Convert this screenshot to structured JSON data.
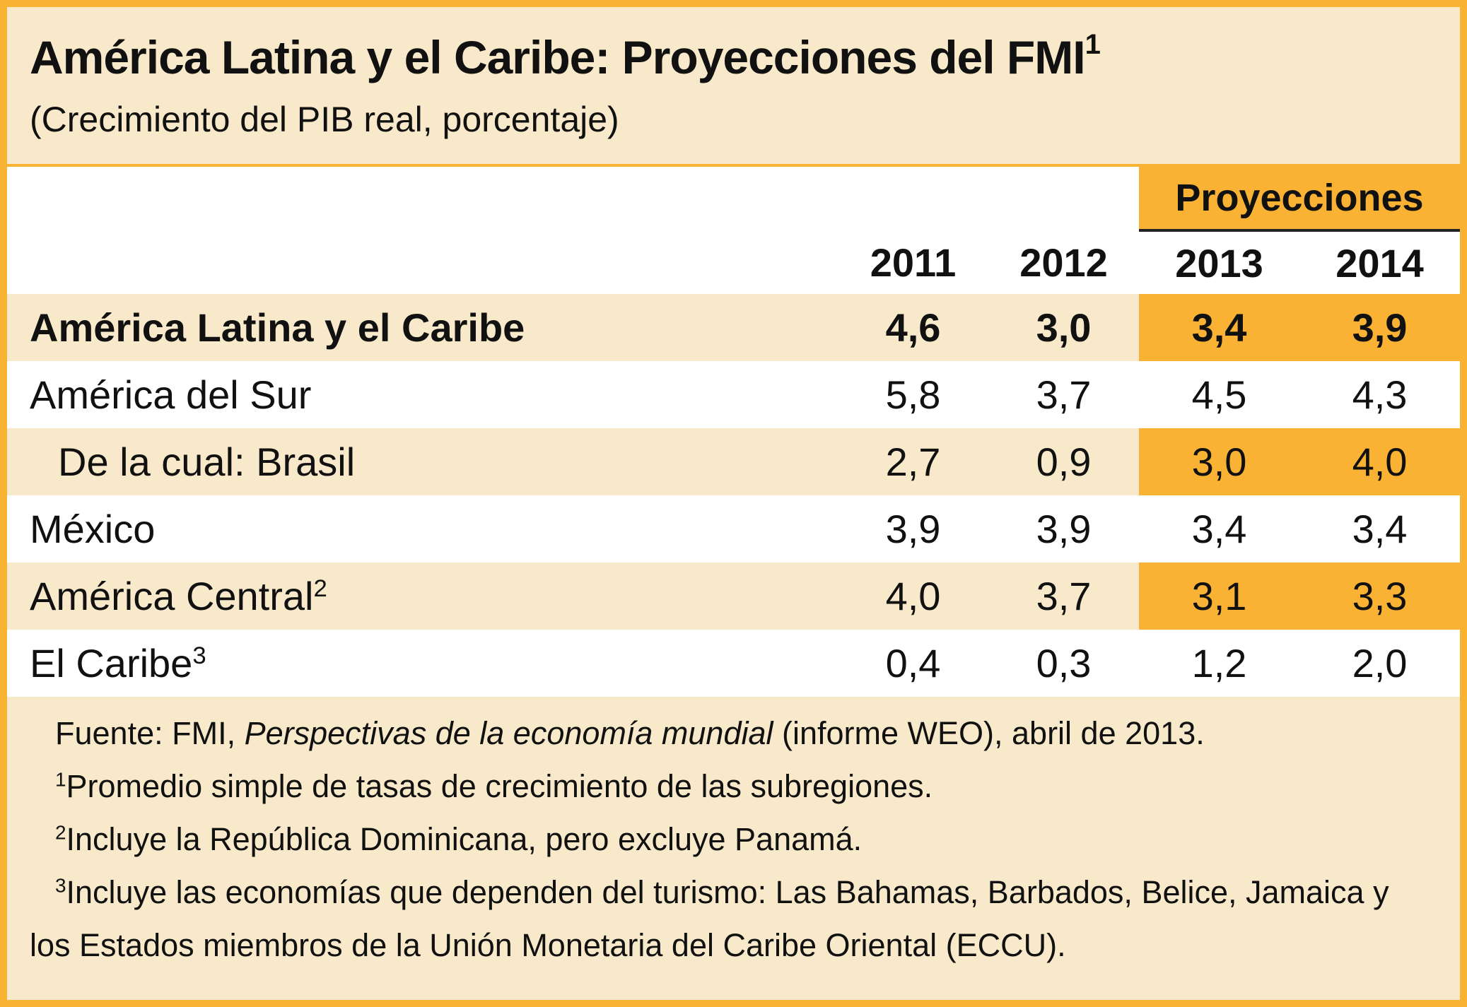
{
  "header": {
    "title": "América Latina y el Caribe: Proyecciones del FMI",
    "title_note": "1",
    "subtitle": "(Crecimiento del PIB real, porcentaje)"
  },
  "table": {
    "group_header": "Proyecciones",
    "columns": [
      "2011",
      "2012",
      "2013",
      "2014"
    ],
    "rows": [
      {
        "label": "América Latina y el Caribe",
        "values": [
          "4,6",
          "3,0",
          "3,4",
          "3,9"
        ]
      },
      {
        "label": "América del Sur",
        "values": [
          "5,8",
          "3,7",
          "4,5",
          "4,3"
        ]
      },
      {
        "label": "De la cual: Brasil",
        "values": [
          "2,7",
          "0,9",
          "3,0",
          "4,0"
        ]
      },
      {
        "label": "México",
        "values": [
          "3,9",
          "3,9",
          "3,4",
          "3,4"
        ]
      },
      {
        "label": "América Central",
        "note": "2",
        "values": [
          "4,0",
          "3,7",
          "3,1",
          "3,3"
        ]
      },
      {
        "label": "El Caribe",
        "note": "3",
        "values": [
          "0,4",
          "0,3",
          "1,2",
          "2,0"
        ]
      }
    ]
  },
  "footnotes": {
    "source": {
      "prefix": "Fuente: FMI, ",
      "italic": "Perspectivas de la economía mundial",
      "suffix": " (informe WEO), abril de 2013."
    },
    "notes": [
      {
        "mark": "1",
        "text": "Promedio simple de tasas de crecimiento de las subregiones."
      },
      {
        "mark": "2",
        "text": "Incluye la República Dominicana, pero excluye Panamá."
      },
      {
        "mark": "3",
        "text": "Incluye las economías que dependen del turismo: Las Bahamas, Barbados, Belice, Jamaica y los Estados miembros de la Unión Monetaria del Caribe Oriental (ECCU)."
      }
    ]
  }
}
